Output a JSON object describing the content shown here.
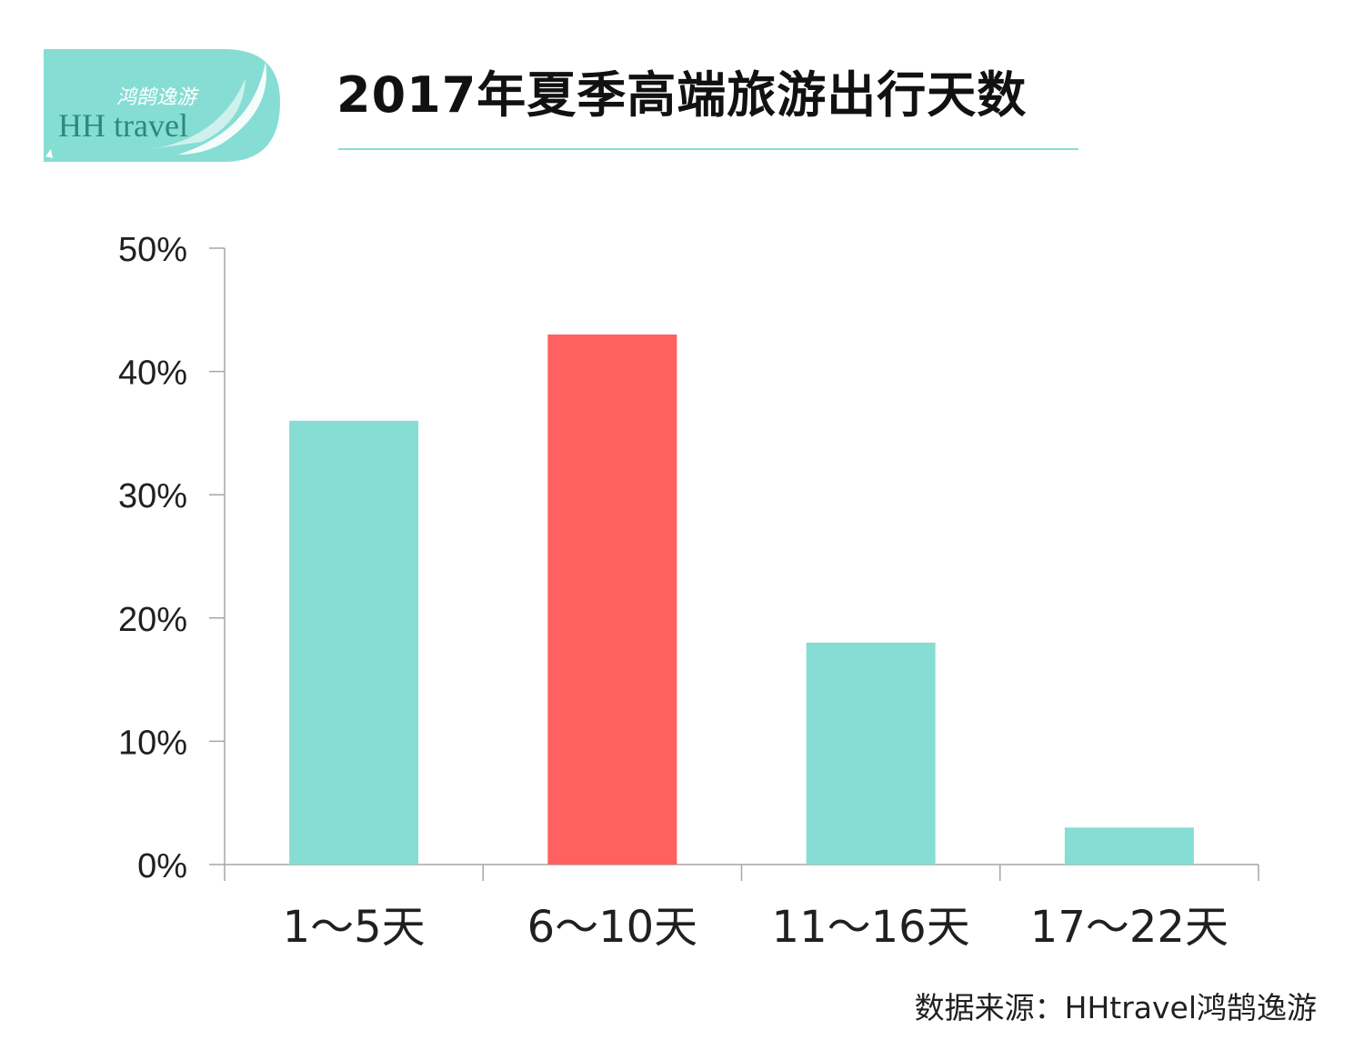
{
  "logo": {
    "text_cn": "鸿鹄逸游",
    "text_en": "HH travel"
  },
  "title": "2017年夏季高端旅游出行天数",
  "source": "数据来源：HHtravel鸿鹄逸游",
  "colors": {
    "teal": "#86ddd3",
    "highlight": "#ff6161",
    "axis": "#a6a6a6",
    "text": "#231f20"
  },
  "chart_data": {
    "type": "bar",
    "title": "2017年夏季高端旅游出行天数",
    "categories": [
      "1～5天",
      "6～10天",
      "11～16天",
      "17～22天"
    ],
    "values": [
      36,
      43,
      18,
      3
    ],
    "unit": "%",
    "ylim": [
      0,
      50
    ],
    "yticks": [
      0,
      10,
      20,
      30,
      40,
      50
    ],
    "ytick_labels": [
      "0%",
      "10%",
      "20%",
      "30%",
      "40%",
      "50%"
    ],
    "highlight_index": 1,
    "grid": false,
    "legend": "none"
  }
}
